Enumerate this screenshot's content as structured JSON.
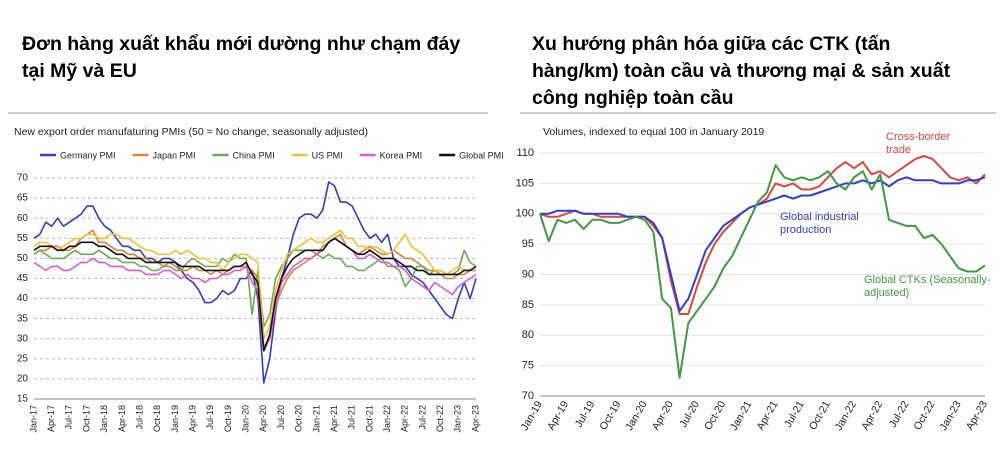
{
  "chart_data": [
    {
      "type": "line",
      "title": "Đơn hàng xuất khẩu mới dường như chạm đáy tại Mỹ và EU",
      "subtitle": "New export order manufaturing PMIs (50 = No change, seasonally adjusted)",
      "categories": [
        "Jan-17",
        null,
        null,
        "Apr-17",
        null,
        null,
        "Jul-17",
        null,
        null,
        "Oct-17",
        null,
        null,
        "Jan-18",
        null,
        null,
        "Apr-18",
        null,
        null,
        "Jul-18",
        null,
        null,
        "Oct-18",
        null,
        null,
        "Jan-19",
        null,
        null,
        "Apr-19",
        null,
        null,
        "Jul-19",
        null,
        null,
        "Oct-19",
        null,
        null,
        "Jan-20",
        null,
        null,
        "Apr-20",
        null,
        null,
        "Jul-20",
        null,
        null,
        "Oct-20",
        null,
        null,
        "Jan-21",
        null,
        null,
        "Apr-21",
        null,
        null,
        "Jul-21",
        null,
        null,
        "Oct-21",
        null,
        null,
        "Jan-22",
        null,
        null,
        "Apr-22",
        null,
        null,
        "Jul-22",
        null,
        null,
        "Oct-22",
        null,
        null,
        "Jan-23",
        null,
        null,
        "Apr-23"
      ],
      "series": [
        {
          "name": "Germany PMI",
          "color": "#2f3fc0",
          "values": [
            55,
            56,
            59,
            58,
            60,
            58,
            59,
            60,
            61,
            63,
            63,
            60,
            58,
            57,
            55,
            53,
            53,
            52,
            52,
            50,
            50,
            49,
            50,
            50,
            49,
            47,
            45,
            44,
            42,
            39,
            39,
            40,
            42,
            41,
            42,
            45,
            45,
            47,
            40,
            19,
            25,
            37,
            45,
            50,
            56,
            60,
            61,
            61,
            60,
            62,
            69,
            68,
            64,
            64,
            63,
            60,
            57,
            55,
            56,
            54,
            56,
            50,
            48,
            48,
            46,
            45,
            44,
            42,
            40,
            38,
            36,
            35,
            40,
            44,
            40,
            45
          ]
        },
        {
          "name": "Japan PMI",
          "color": "#e0823d",
          "values": [
            51,
            52,
            52,
            53,
            53,
            52,
            52,
            53,
            55,
            56,
            57,
            54,
            54,
            53,
            52,
            52,
            51,
            51,
            50,
            50,
            49,
            49,
            48,
            49,
            48,
            47,
            47,
            48,
            47,
            47,
            46,
            47,
            46,
            47,
            48,
            48,
            48,
            47,
            45,
            28,
            30,
            38,
            42,
            45,
            47,
            48,
            49,
            50,
            51,
            53,
            54,
            55,
            56,
            53,
            52,
            51,
            52,
            53,
            52,
            51,
            51,
            52,
            51,
            50,
            50,
            49,
            48,
            47,
            47,
            46,
            45,
            45,
            46,
            46,
            47,
            47
          ]
        },
        {
          "name": "China PMI",
          "color": "#6aab55",
          "values": [
            51,
            52,
            51,
            50,
            50,
            50,
            51,
            52,
            51,
            51,
            51,
            52,
            51,
            50,
            50,
            49,
            49,
            49,
            48,
            48,
            47,
            47,
            48,
            48,
            47,
            47,
            49,
            50,
            49,
            48,
            48,
            48,
            50,
            49,
            51,
            50,
            50,
            36,
            47,
            33,
            36,
            45,
            48,
            50,
            52,
            52,
            52,
            52,
            51,
            50,
            51,
            50,
            50,
            48,
            48,
            47,
            47,
            48,
            49,
            50,
            48,
            48,
            47,
            43,
            45,
            48,
            48,
            46,
            47,
            47,
            46,
            46,
            47,
            52,
            49,
            48
          ]
        },
        {
          "name": "US PMI",
          "color": "#f2c232",
          "values": [
            53,
            54,
            54,
            53,
            52,
            53,
            54,
            55,
            55,
            56,
            56,
            55,
            55,
            56,
            56,
            55,
            55,
            54,
            53,
            52,
            52,
            51,
            51,
            51,
            52,
            51,
            52,
            51,
            50,
            50,
            49,
            49,
            47,
            49,
            50,
            51,
            51,
            50,
            49,
            30,
            33,
            42,
            47,
            51,
            52,
            53,
            54,
            55,
            54,
            54,
            55,
            56,
            57,
            55,
            55,
            53,
            53,
            52,
            53,
            52,
            51,
            52,
            54,
            56,
            53,
            52,
            51,
            49,
            47,
            47,
            46,
            47,
            48,
            47,
            47,
            48
          ]
        },
        {
          "name": "Korea PMI",
          "color": "#e457c8",
          "values": [
            49,
            48,
            47,
            48,
            48,
            47,
            47,
            48,
            49,
            49,
            50,
            49,
            49,
            48,
            48,
            48,
            47,
            47,
            47,
            46,
            46,
            46,
            47,
            47,
            46,
            45,
            46,
            45,
            45,
            44,
            45,
            45,
            46,
            46,
            47,
            47,
            48,
            44,
            42,
            27,
            30,
            38,
            44,
            46,
            48,
            49,
            50,
            50,
            51,
            52,
            54,
            55,
            54,
            53,
            52,
            50,
            50,
            51,
            50,
            49,
            49,
            48,
            48,
            47,
            45,
            44,
            43,
            42,
            44,
            43,
            42,
            41,
            43,
            44,
            45,
            46
          ]
        },
        {
          "name": "Global PMI",
          "color": "#111111",
          "values": [
            52,
            53,
            53,
            53,
            52,
            52,
            53,
            53,
            54,
            54,
            54,
            53,
            53,
            52,
            51,
            51,
            50,
            50,
            50,
            49,
            49,
            49,
            49,
            49,
            49,
            48,
            48,
            48,
            48,
            47,
            47,
            47,
            47,
            47,
            48,
            48,
            49,
            46,
            44,
            27,
            31,
            40,
            45,
            48,
            50,
            51,
            52,
            52,
            52,
            52,
            54,
            55,
            54,
            53,
            52,
            51,
            51,
            52,
            51,
            50,
            50,
            50,
            49,
            48,
            48,
            47,
            47,
            46,
            46,
            46,
            46,
            46,
            46,
            47,
            47,
            48
          ]
        }
      ],
      "ylim": [
        15,
        70
      ],
      "yticks": [
        15,
        20,
        25,
        30,
        35,
        40,
        45,
        50,
        55,
        60,
        65,
        70
      ],
      "grid": true,
      "legend": "top"
    },
    {
      "type": "line",
      "title": "Xu hướng phân hóa giữa các CTK (tấn hàng/km) toàn cầu và thương mại & sản xuất công nghiệp toàn cầu",
      "subtitle": "Volumes, indexed to equal 100 in January 2019",
      "categories": [
        "Jan-19",
        null,
        null,
        "Apr-19",
        null,
        null,
        "Jul-19",
        null,
        null,
        "Oct-19",
        null,
        null,
        "Jan-20",
        null,
        null,
        "Apr-20",
        null,
        null,
        "Jul-20",
        null,
        null,
        "Oct-20",
        null,
        null,
        "Jan-21",
        null,
        null,
        "Apr-21",
        null,
        null,
        "Jul-21",
        null,
        null,
        "Oct-21",
        null,
        null,
        "Jan-22",
        null,
        null,
        "Apr-22",
        null,
        null,
        "Jul-22",
        null,
        null,
        "Oct-22",
        null,
        null,
        "Jan-23",
        null,
        null,
        "Apr-23"
      ],
      "series": [
        {
          "name": "Cross-border trade",
          "color": "#e0463c",
          "values": [
            100,
            99.5,
            99.5,
            100,
            100.5,
            100,
            100,
            99.5,
            99.5,
            99.5,
            99.5,
            99.5,
            99.5,
            98,
            96,
            89,
            83.5,
            83.5,
            88,
            92,
            95,
            97,
            98.5,
            100,
            101,
            101.5,
            102.5,
            105,
            104.5,
            105,
            104,
            104,
            104.5,
            106,
            107.5,
            108.5,
            107.5,
            108.5,
            106.5,
            107,
            106,
            107,
            108,
            109,
            109.5,
            109,
            107.5,
            106,
            105.5,
            106,
            105,
            106.5
          ]
        },
        {
          "name": "Global industrial production",
          "color": "#2f3fd0",
          "values": [
            100,
            100,
            100.5,
            100.5,
            100.5,
            100,
            100,
            100,
            100,
            100,
            99.5,
            99.5,
            99.5,
            98.5,
            96,
            90,
            84,
            86,
            90,
            94,
            96,
            98,
            99,
            100,
            101,
            101.5,
            102,
            102.5,
            103,
            102.5,
            103,
            103,
            103.5,
            104,
            104.5,
            105,
            105,
            105.5,
            105,
            105.5,
            104.5,
            105.5,
            106,
            105.5,
            105.5,
            105.5,
            105,
            105,
            105,
            105.5,
            105.5,
            106
          ]
        },
        {
          "name": "Global CTKs (Seasonally-adjusted)",
          "color": "#3f9a3f",
          "values": [
            100,
            95.5,
            99,
            98.5,
            99,
            97.5,
            99,
            99,
            98.5,
            98.5,
            99,
            99.5,
            99,
            97,
            86,
            84.5,
            73,
            82,
            84,
            86,
            88,
            91,
            93,
            96,
            99,
            102,
            103.5,
            108,
            106,
            105.5,
            106,
            105.5,
            106,
            107,
            105,
            104,
            106,
            107,
            104,
            106.5,
            99,
            98.5,
            98,
            98,
            96,
            96.5,
            95,
            93,
            91,
            90.5,
            90.5,
            91.5
          ]
        }
      ],
      "ylim": [
        70,
        110
      ],
      "yticks": [
        70,
        75,
        80,
        85,
        90,
        95,
        100,
        105,
        110
      ],
      "grid": true
    }
  ]
}
